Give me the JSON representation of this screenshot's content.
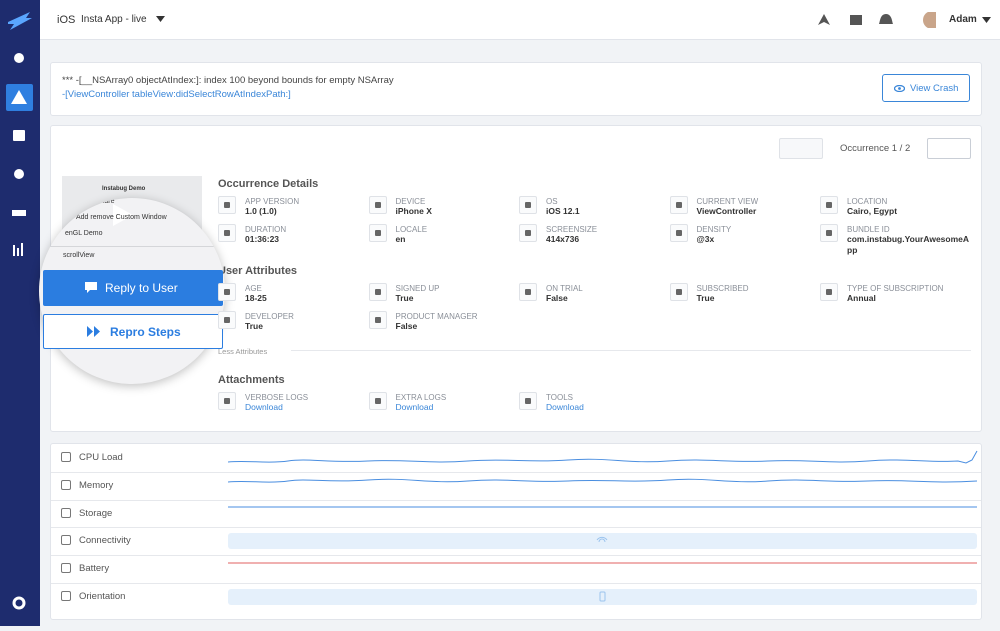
{
  "header": {
    "platform": "iOS",
    "app": "Insta App - live",
    "user": "Adam"
  },
  "crash": {
    "exception": "*** -[__NSArray0 objectAtIndex:]: index 100 beyond bounds for empty NSArray",
    "method": "-[ViewController tableView:didSelectRowAtIndexPath:]",
    "action": "View Crash"
  },
  "occurrence": "Occurrence 1 / 2",
  "preview": {
    "title": "Instabug Demo",
    "rows": [
      "Social share",
      "Add remove Custom Window",
      "enGL Demo",
      "scrollView"
    ]
  },
  "actions": [
    "Reply to User",
    "Repro Steps"
  ],
  "details": {
    "title": "Occurrence Details",
    "items": [
      {
        "label": "APP VERSION",
        "value": "1.0 (1.0)"
      },
      {
        "label": "DEVICE",
        "value": "iPhone X"
      },
      {
        "label": "OS",
        "value": "iOS 12.1"
      },
      {
        "label": "CURRENT VIEW",
        "value": "ViewController"
      },
      {
        "label": "LOCATION",
        "value": "Cairo, Egypt"
      },
      {
        "label": "DURATION",
        "value": "01:36:23"
      },
      {
        "label": "LOCALE",
        "value": "en"
      },
      {
        "label": "SCREENSIZE",
        "value": "414x736"
      },
      {
        "label": "DENSITY",
        "value": "@3x"
      },
      {
        "label": "BUNDLE ID",
        "value": "com.instabug.YourAwesomeApp"
      }
    ]
  },
  "attributes": {
    "title": "User Attributes",
    "items": [
      {
        "label": "AGE",
        "value": "18-25"
      },
      {
        "label": "SIGNED UP",
        "value": "True"
      },
      {
        "label": "ON TRIAL",
        "value": "False"
      },
      {
        "label": "SUBSCRIBED",
        "value": "True"
      },
      {
        "label": "TYPE OF SUBSCRIPTION",
        "value": "Annual"
      },
      {
        "label": "DEVELOPER",
        "value": "True"
      },
      {
        "label": "PRODUCT MANAGER",
        "value": "False"
      }
    ],
    "toggle": "Less Attributes"
  },
  "attachments": {
    "title": "Attachments",
    "items": [
      {
        "label": "VERBOSE LOGS",
        "value": "Download"
      },
      {
        "label": "EXTRA LOGS",
        "value": "Download"
      },
      {
        "label": "TOOLS",
        "value": "Download"
      }
    ]
  },
  "timeline": [
    "CPU Load",
    "Memory",
    "Storage",
    "Connectivity",
    "Battery",
    "Orientation"
  ]
}
